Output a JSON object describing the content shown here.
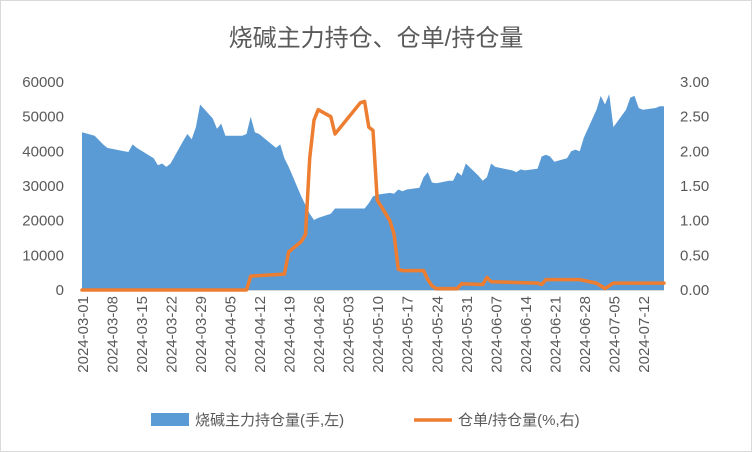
{
  "chart_data": {
    "type": "area",
    "title": "烧碱主力持仓、仓单/持仓量",
    "x_start": "2024-03-01",
    "x_end": "2024-07-17",
    "x_tick_labels": [
      "2024-03-01",
      "2024-03-08",
      "2024-03-15",
      "2024-03-22",
      "2024-03-29",
      "2024-04-05",
      "2024-04-12",
      "2024-04-19",
      "2024-04-26",
      "2024-05-03",
      "2024-05-10",
      "2024-05-17",
      "2024-05-24",
      "2024-05-31",
      "2024-06-07",
      "2024-06-14",
      "2024-06-21",
      "2024-06-28",
      "2024-07-05",
      "2024-07-12"
    ],
    "y_left": {
      "ylim": [
        0,
        60000
      ],
      "ticks": [
        "0",
        "10000",
        "20000",
        "30000",
        "40000",
        "50000",
        "60000"
      ]
    },
    "y_right": {
      "ylim": [
        0,
        3.0
      ],
      "ticks": [
        "0.00",
        "0.50",
        "1.00",
        "1.50",
        "2.00",
        "2.50",
        "3.00"
      ]
    },
    "series": [
      {
        "name": "烧碱主力持仓量(手,左)",
        "kind": "area",
        "axis": "left",
        "color": "#5b9bd5",
        "points": [
          [
            "2024-03-01",
            45500
          ],
          [
            "2024-03-04",
            44500
          ],
          [
            "2024-03-06",
            42000
          ],
          [
            "2024-03-07",
            41000
          ],
          [
            "2024-03-11",
            40000
          ],
          [
            "2024-03-12",
            39800
          ],
          [
            "2024-03-13",
            42000
          ],
          [
            "2024-03-14",
            41000
          ],
          [
            "2024-03-18",
            38000
          ],
          [
            "2024-03-19",
            36000
          ],
          [
            "2024-03-20",
            36500
          ],
          [
            "2024-03-21",
            35500
          ],
          [
            "2024-03-22",
            36500
          ],
          [
            "2024-03-25",
            43000
          ],
          [
            "2024-03-26",
            45000
          ],
          [
            "2024-03-27",
            43500
          ],
          [
            "2024-03-28",
            47000
          ],
          [
            "2024-03-29",
            53500
          ],
          [
            "2024-04-01",
            49500
          ],
          [
            "2024-04-02",
            46500
          ],
          [
            "2024-04-03",
            48000
          ],
          [
            "2024-04-04",
            44500
          ],
          [
            "2024-04-08",
            44500
          ],
          [
            "2024-04-09",
            45000
          ],
          [
            "2024-04-10",
            50000
          ],
          [
            "2024-04-11",
            45500
          ],
          [
            "2024-04-12",
            45000
          ],
          [
            "2024-04-15",
            42000
          ],
          [
            "2024-04-16",
            41000
          ],
          [
            "2024-04-17",
            42000
          ],
          [
            "2024-04-18",
            38000
          ],
          [
            "2024-04-19",
            35500
          ],
          [
            "2024-04-22",
            27000
          ],
          [
            "2024-04-23",
            24500
          ],
          [
            "2024-04-24",
            22000
          ],
          [
            "2024-04-25",
            20200
          ],
          [
            "2024-04-26",
            20800
          ],
          [
            "2024-04-29",
            22000
          ],
          [
            "2024-04-30",
            23500
          ],
          [
            "2024-05-06",
            23500
          ],
          [
            "2024-05-07",
            23500
          ],
          [
            "2024-05-08",
            25000
          ],
          [
            "2024-05-09",
            27000
          ],
          [
            "2024-05-10",
            27500
          ],
          [
            "2024-05-13",
            28000
          ],
          [
            "2024-05-14",
            27800
          ],
          [
            "2024-05-15",
            29000
          ],
          [
            "2024-05-16",
            28500
          ],
          [
            "2024-05-17",
            29000
          ],
          [
            "2024-05-20",
            29500
          ],
          [
            "2024-05-21",
            32500
          ],
          [
            "2024-05-22",
            34000
          ],
          [
            "2024-05-23",
            31000
          ],
          [
            "2024-05-24",
            30800
          ],
          [
            "2024-05-27",
            31500
          ],
          [
            "2024-05-28",
            31500
          ],
          [
            "2024-05-29",
            34000
          ],
          [
            "2024-05-30",
            33000
          ],
          [
            "2024-05-31",
            36500
          ],
          [
            "2024-06-03",
            33000
          ],
          [
            "2024-06-04",
            31500
          ],
          [
            "2024-06-05",
            32500
          ],
          [
            "2024-06-06",
            36500
          ],
          [
            "2024-06-07",
            35500
          ],
          [
            "2024-06-11",
            34500
          ],
          [
            "2024-06-12",
            34000
          ],
          [
            "2024-06-13",
            34800
          ],
          [
            "2024-06-14",
            34500
          ],
          [
            "2024-06-17",
            35000
          ],
          [
            "2024-06-18",
            38500
          ],
          [
            "2024-06-19",
            39000
          ],
          [
            "2024-06-20",
            38500
          ],
          [
            "2024-06-21",
            37000
          ],
          [
            "2024-06-24",
            38000
          ],
          [
            "2024-06-25",
            40000
          ],
          [
            "2024-06-26",
            40500
          ],
          [
            "2024-06-27",
            40000
          ],
          [
            "2024-06-28",
            44000
          ],
          [
            "2024-07-01",
            52000
          ],
          [
            "2024-07-02",
            56000
          ],
          [
            "2024-07-03",
            53500
          ],
          [
            "2024-07-04",
            56500
          ],
          [
            "2024-07-05",
            47000
          ],
          [
            "2024-07-08",
            52000
          ],
          [
            "2024-07-09",
            55500
          ],
          [
            "2024-07-10",
            56000
          ],
          [
            "2024-07-11",
            52500
          ],
          [
            "2024-07-12",
            52000
          ],
          [
            "2024-07-15",
            52500
          ],
          [
            "2024-07-16",
            53000
          ],
          [
            "2024-07-17",
            53000
          ]
        ]
      },
      {
        "name": "仓单/持仓量(%,右)",
        "kind": "line",
        "axis": "right",
        "color": "#ed7d31",
        "points": [
          [
            "2024-03-01",
            0.0
          ],
          [
            "2024-04-09",
            0.0
          ],
          [
            "2024-04-10",
            0.2
          ],
          [
            "2024-04-18",
            0.23
          ],
          [
            "2024-04-19",
            0.55
          ],
          [
            "2024-04-22",
            0.7
          ],
          [
            "2024-04-23",
            0.8
          ],
          [
            "2024-04-24",
            1.9
          ],
          [
            "2024-04-25",
            2.45
          ],
          [
            "2024-04-26",
            2.6
          ],
          [
            "2024-04-29",
            2.5
          ],
          [
            "2024-04-30",
            2.25
          ],
          [
            "2024-05-06",
            2.7
          ],
          [
            "2024-05-07",
            2.72
          ],
          [
            "2024-05-08",
            2.35
          ],
          [
            "2024-05-09",
            2.3
          ],
          [
            "2024-05-10",
            1.3
          ],
          [
            "2024-05-13",
            1.0
          ],
          [
            "2024-05-14",
            0.8
          ],
          [
            "2024-05-15",
            0.3
          ],
          [
            "2024-05-16",
            0.28
          ],
          [
            "2024-05-21",
            0.28
          ],
          [
            "2024-05-22",
            0.15
          ],
          [
            "2024-05-23",
            0.06
          ],
          [
            "2024-05-24",
            0.02
          ],
          [
            "2024-05-29",
            0.02
          ],
          [
            "2024-05-30",
            0.09
          ],
          [
            "2024-06-04",
            0.08
          ],
          [
            "2024-06-05",
            0.18
          ],
          [
            "2024-06-06",
            0.12
          ],
          [
            "2024-06-17",
            0.1
          ],
          [
            "2024-06-18",
            0.08
          ],
          [
            "2024-06-19",
            0.15
          ],
          [
            "2024-06-27",
            0.15
          ],
          [
            "2024-07-01",
            0.1
          ],
          [
            "2024-07-03",
            0.02
          ],
          [
            "2024-07-04",
            0.06
          ],
          [
            "2024-07-05",
            0.1
          ],
          [
            "2024-07-17",
            0.1
          ]
        ]
      }
    ],
    "grid": false,
    "legend": "bottom"
  }
}
